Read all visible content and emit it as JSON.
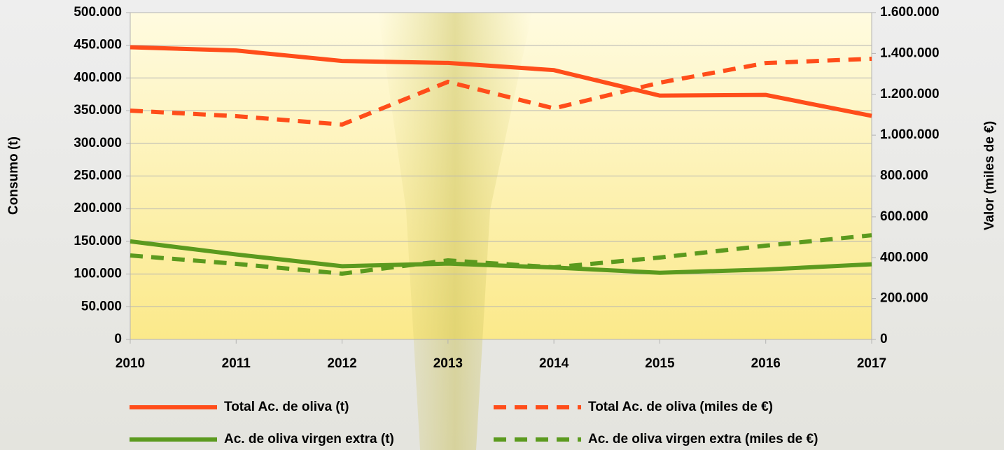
{
  "chart_data": {
    "type": "line",
    "categories": [
      "2010",
      "2011",
      "2012",
      "2013",
      "2014",
      "2015",
      "2016",
      "2017"
    ],
    "y_label": "Consumo (t)",
    "y2_label": "Valor (miles de €)",
    "ylim": [
      0,
      500000
    ],
    "yticks": [
      0,
      {
        "value": 50000,
        "label": "50.000"
      },
      {
        "value": 100000,
        "label": "100.000"
      },
      {
        "value": 150000,
        "label": "150.000"
      },
      {
        "value": 200000,
        "label": "200.000"
      },
      {
        "value": 250000,
        "label": "250.000"
      },
      {
        "value": 300000,
        "label": "300.000"
      },
      {
        "value": 350000,
        "label": "350.000"
      },
      {
        "value": 400000,
        "label": "400.000"
      },
      {
        "value": 450000,
        "label": "450.000"
      },
      {
        "value": 500000,
        "label": "500.000"
      }
    ],
    "y2lim": [
      0,
      1600000
    ],
    "y2ticks": [
      0,
      {
        "value": 200000,
        "label": "200.000"
      },
      {
        "value": 400000,
        "label": "400.000"
      },
      {
        "value": 600000,
        "label": "600.000"
      },
      {
        "value": 800000,
        "label": "800.000"
      },
      {
        "value": 1000000,
        "label": "1.000.000"
      },
      {
        "value": 1200000,
        "label": "1.200.000"
      },
      {
        "value": 1400000,
        "label": "1.400.000"
      },
      {
        "value": 1600000,
        "label": "1.600.000"
      }
    ],
    "grid": true,
    "legend": "bottom",
    "series": [
      {
        "name": "Total Ac. de oliva (t)",
        "color": "#ff4d1a",
        "style": "solid",
        "values": [
          447000,
          442000,
          426000,
          423000,
          412000,
          373000,
          374000,
          342000
        ]
      },
      {
        "name": "Total Ac. de oliva (miles de €)",
        "color": "#ff4d1a",
        "style": "dashed",
        "axis": "y2",
        "values": [
          1120000,
          1093000,
          1052000,
          1261000,
          1131000,
          1257000,
          1353000,
          1374000
        ]
      },
      {
        "name": "Ac. de oliva virgen extra (t)",
        "color": "#5b9a1e",
        "style": "solid",
        "values": [
          150000,
          130000,
          112000,
          116000,
          110000,
          102000,
          107000,
          115000
        ]
      },
      {
        "name": "Ac. de oliva virgen extra (miles de €)",
        "color": "#5b9a1e",
        "style": "dashed",
        "axis": "y2",
        "values": [
          411000,
          370000,
          322000,
          387000,
          353000,
          401000,
          459000,
          510000
        ]
      }
    ]
  }
}
